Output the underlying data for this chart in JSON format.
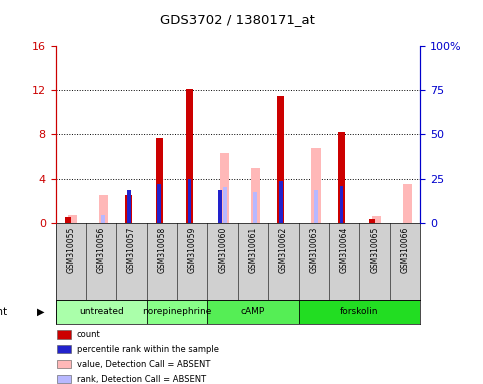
{
  "title": "GDS3702 / 1380171_at",
  "samples": [
    "GSM310055",
    "GSM310056",
    "GSM310057",
    "GSM310058",
    "GSM310059",
    "GSM310060",
    "GSM310061",
    "GSM310062",
    "GSM310063",
    "GSM310064",
    "GSM310065",
    "GSM310066"
  ],
  "group_defs": [
    {
      "name": "untreated",
      "start": 0,
      "end": 2,
      "color": "#aaffaa"
    },
    {
      "name": "norepinephrine",
      "start": 3,
      "end": 4,
      "color": "#88ff88"
    },
    {
      "name": "cAMP",
      "start": 5,
      "end": 7,
      "color": "#55ee55"
    },
    {
      "name": "forskolin",
      "start": 8,
      "end": 11,
      "color": "#22dd22"
    }
  ],
  "red_bars": [
    0.5,
    0.0,
    2.5,
    7.7,
    12.1,
    0.0,
    0.0,
    11.5,
    0.0,
    8.2,
    0.3,
    0.0
  ],
  "pink_bars": [
    0.7,
    2.5,
    0.0,
    0.0,
    0.0,
    6.3,
    5.0,
    0.0,
    6.8,
    0.0,
    0.6,
    3.5
  ],
  "blue_bars": [
    0.0,
    0.0,
    3.0,
    3.5,
    4.0,
    3.0,
    0.0,
    3.8,
    0.0,
    3.3,
    0.0,
    0.0
  ],
  "lightblue_bars": [
    0.0,
    0.7,
    0.0,
    0.0,
    0.0,
    3.2,
    2.8,
    0.0,
    3.0,
    0.0,
    0.0,
    0.0
  ],
  "ylim_left": [
    0,
    16
  ],
  "ylim_right": [
    0,
    100
  ],
  "yticks_left": [
    0,
    4,
    8,
    12,
    16
  ],
  "yticks_right": [
    0,
    25,
    50,
    75,
    100
  ],
  "ytick_right_labels": [
    "0",
    "25",
    "50",
    "75",
    "100%"
  ],
  "ytick_left_labels": [
    "0",
    "4",
    "8",
    "12",
    "16"
  ],
  "hgrid_at": [
    4,
    8,
    12
  ],
  "color_red": "#cc0000",
  "color_pink": "#ffb8b8",
  "color_blue": "#2222cc",
  "color_lightblue": "#b8b8ff",
  "color_axis_left": "#cc0000",
  "color_axis_right": "#0000cc",
  "bg_plot": "#ffffff",
  "bg_fig": "#ffffff",
  "bg_xtick": "#d0d0d0",
  "legend_items": [
    {
      "color": "#cc0000",
      "label": "count"
    },
    {
      "color": "#2222cc",
      "label": "percentile rank within the sample"
    },
    {
      "color": "#ffb8b8",
      "label": "value, Detection Call = ABSENT"
    },
    {
      "color": "#b8b8ff",
      "label": "rank, Detection Call = ABSENT"
    }
  ]
}
